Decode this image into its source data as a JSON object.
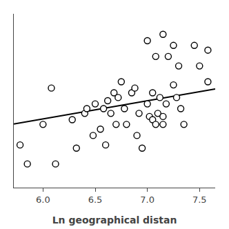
{
  "chart_data": {
    "type": "scatter",
    "xlabel": "Ln geographical distan",
    "xlim": [
      5.72,
      7.65
    ],
    "ylim": [
      -0.05,
      1.05
    ],
    "xticks": [
      {
        "value": 6,
        "label": "6.0"
      },
      {
        "value": 6.5,
        "label": "6.5"
      },
      {
        "value": 7,
        "label": "7.0"
      },
      {
        "value": 7.5,
        "label": "7.5"
      }
    ],
    "yticks": [],
    "tick_labels": "x",
    "grid": false,
    "series": [
      {
        "type": "scatter",
        "marker": "open_circle",
        "color": "black",
        "x": [
          5.78,
          5.85,
          6.0,
          6.08,
          6.12,
          6.28,
          6.32,
          6.4,
          6.42,
          6.48,
          6.5,
          6.55,
          6.58,
          6.6,
          6.62,
          6.65,
          6.68,
          6.7,
          6.72,
          6.75,
          6.78,
          6.8,
          6.85,
          6.88,
          6.9,
          6.92,
          6.95,
          7.0,
          7.02,
          7.05,
          7.05,
          7.08,
          7.1,
          7.12,
          7.15,
          7.15,
          7.18,
          7.25,
          7.28,
          7.32,
          7.35,
          7.45,
          7.5,
          7.58,
          7.0,
          7.08,
          7.15,
          7.2,
          7.25,
          7.3,
          7.58
        ],
        "values": [
          0.22,
          0.1,
          0.35,
          0.58,
          0.1,
          0.38,
          0.2,
          0.42,
          0.45,
          0.28,
          0.48,
          0.32,
          0.45,
          0.22,
          0.5,
          0.42,
          0.55,
          0.35,
          0.52,
          0.62,
          0.45,
          0.35,
          0.55,
          0.58,
          0.28,
          0.42,
          0.2,
          0.48,
          0.4,
          0.38,
          0.55,
          0.35,
          0.42,
          0.52,
          0.4,
          0.35,
          0.48,
          0.6,
          0.52,
          0.45,
          0.35,
          0.85,
          0.72,
          0.82,
          0.88,
          0.78,
          0.92,
          0.78,
          0.85,
          0.72,
          0.62
        ]
      },
      {
        "type": "line",
        "line_style": "solid",
        "color": "black",
        "x": [
          5.72,
          7.65
        ],
        "values": [
          0.3528,
          0.57475
        ]
      }
    ]
  }
}
